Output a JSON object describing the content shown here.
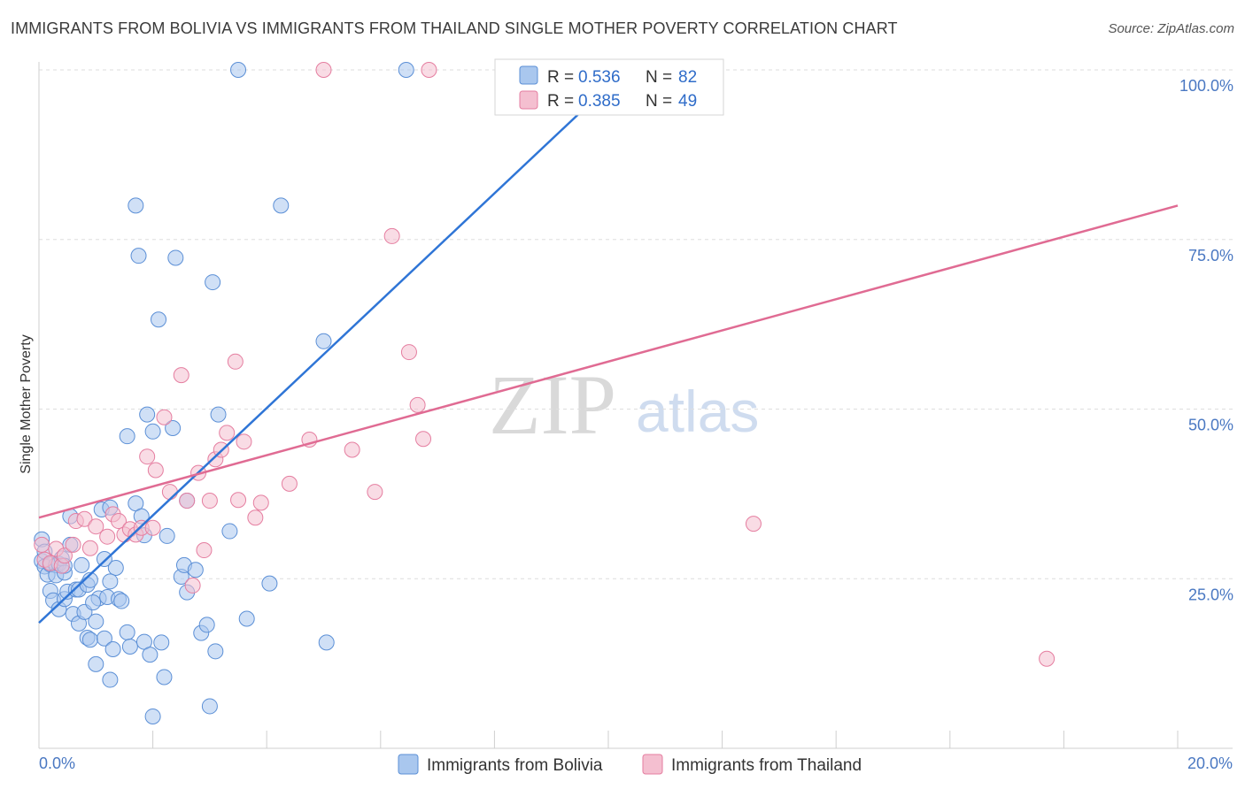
{
  "chart_data": {
    "type": "scatter",
    "title": "IMMIGRANTS FROM BOLIVIA VS IMMIGRANTS FROM THAILAND SINGLE MOTHER POVERTY CORRELATION CHART",
    "source": "Source: ZipAtlas.com",
    "xlabel": "",
    "ylabel": "Single Mother Poverty",
    "xlim": [
      0,
      20
    ],
    "ylim": [
      0,
      105
    ],
    "x_tick_labels": [
      "0.0%",
      "20.0%"
    ],
    "y_ticks": [
      25,
      50,
      75,
      100
    ],
    "y_tick_labels": [
      "25.0%",
      "50.0%",
      "75.0%",
      "100.0%"
    ],
    "watermark": {
      "zip": "ZIP",
      "atlas": "atlas"
    },
    "legend": {
      "r_label": "R =",
      "n_label": "N =",
      "entries": [
        {
          "name": "Immigrants from Bolivia",
          "r": "0.536",
          "n": "82"
        },
        {
          "name": "Immigrants from Thailand",
          "r": "0.385",
          "n": "49"
        }
      ]
    },
    "series": [
      {
        "name": "Immigrants from Bolivia",
        "color": "#5b8fd6",
        "fill": "#a9c7ee",
        "trend": {
          "x0": 0,
          "y0": 18.5,
          "x1": 10.3,
          "y1": 100
        },
        "points": [
          [
            0.05,
            30.8
          ],
          [
            0.05,
            27.6
          ],
          [
            0.1,
            29
          ],
          [
            0.1,
            26.8
          ],
          [
            0.15,
            25.6
          ],
          [
            0.2,
            27.1
          ],
          [
            0.2,
            23.2
          ],
          [
            0.25,
            21.8
          ],
          [
            0.3,
            27
          ],
          [
            0.3,
            25.5
          ],
          [
            0.35,
            27.2
          ],
          [
            0.35,
            20.5
          ],
          [
            0.4,
            28
          ],
          [
            0.45,
            25.9
          ],
          [
            0.45,
            22
          ],
          [
            0.5,
            23.1
          ],
          [
            0.55,
            30
          ],
          [
            0.55,
            34.2
          ],
          [
            0.6,
            19.8
          ],
          [
            0.65,
            23.4
          ],
          [
            0.7,
            18.4
          ],
          [
            0.7,
            23.4
          ],
          [
            0.8,
            20.1
          ],
          [
            0.85,
            24.1
          ],
          [
            0.85,
            16.3
          ],
          [
            0.9,
            24.8
          ],
          [
            0.9,
            16
          ],
          [
            1.0,
            18.7
          ],
          [
            1.0,
            12.4
          ],
          [
            1.05,
            22.1
          ],
          [
            1.1,
            35.2
          ],
          [
            1.15,
            16.2
          ],
          [
            1.15,
            27.9
          ],
          [
            1.2,
            22.3
          ],
          [
            1.25,
            35.5
          ],
          [
            1.25,
            10.1
          ],
          [
            1.3,
            14.6
          ],
          [
            1.35,
            26.6
          ],
          [
            1.4,
            22
          ],
          [
            1.45,
            21.7
          ],
          [
            1.55,
            17.1
          ],
          [
            1.55,
            46
          ],
          [
            1.6,
            15
          ],
          [
            1.7,
            80
          ],
          [
            1.7,
            36.1
          ],
          [
            1.75,
            72.6
          ],
          [
            1.8,
            34.2
          ],
          [
            1.85,
            15.7
          ],
          [
            1.85,
            31.4
          ],
          [
            1.9,
            49.2
          ],
          [
            1.95,
            13.8
          ],
          [
            2.0,
            46.7
          ],
          [
            2.1,
            63.2
          ],
          [
            2.15,
            15.6
          ],
          [
            2.2,
            10.5
          ],
          [
            2.25,
            31.3
          ],
          [
            2.35,
            47.2
          ],
          [
            2.4,
            72.3
          ],
          [
            2.5,
            25.3
          ],
          [
            2.55,
            27
          ],
          [
            2.6,
            23
          ],
          [
            2.75,
            26.3
          ],
          [
            2.85,
            17
          ],
          [
            2.95,
            18.2
          ],
          [
            3.0,
            6.2
          ],
          [
            3.05,
            68.7
          ],
          [
            3.1,
            14.3
          ],
          [
            3.15,
            49.2
          ],
          [
            3.35,
            32
          ],
          [
            3.5,
            100
          ],
          [
            3.65,
            19.1
          ],
          [
            4.05,
            24.3
          ],
          [
            4.25,
            80
          ],
          [
            5.0,
            60
          ],
          [
            5.05,
            15.6
          ],
          [
            6.45,
            100
          ],
          [
            2.0,
            4.7
          ],
          [
            0.75,
            27
          ],
          [
            1.25,
            24.6
          ],
          [
            2.6,
            36.5
          ],
          [
            0.45,
            26.9
          ],
          [
            0.95,
            21.5
          ]
        ]
      },
      {
        "name": "Immigrants from Thailand",
        "color": "#e57ea0",
        "fill": "#f4bfd0",
        "trend": {
          "x0": 0,
          "y0": 34,
          "x1": 20,
          "y1": 80
        },
        "points": [
          [
            0.05,
            30
          ],
          [
            0.1,
            27.8
          ],
          [
            0.2,
            27.3
          ],
          [
            0.3,
            29.4
          ],
          [
            0.4,
            26.9
          ],
          [
            0.45,
            28.4
          ],
          [
            0.6,
            30
          ],
          [
            0.65,
            33.5
          ],
          [
            0.8,
            33.8
          ],
          [
            0.9,
            29.5
          ],
          [
            1.0,
            32.7
          ],
          [
            1.2,
            31.2
          ],
          [
            1.3,
            34.5
          ],
          [
            1.4,
            33.5
          ],
          [
            1.5,
            31.5
          ],
          [
            1.6,
            32.3
          ],
          [
            1.7,
            31.5
          ],
          [
            1.8,
            32.5
          ],
          [
            1.9,
            43
          ],
          [
            2.0,
            32.5
          ],
          [
            2.05,
            41
          ],
          [
            2.2,
            48.8
          ],
          [
            2.3,
            37.8
          ],
          [
            2.5,
            55
          ],
          [
            2.6,
            36.5
          ],
          [
            2.7,
            24
          ],
          [
            2.8,
            40.6
          ],
          [
            2.9,
            29.2
          ],
          [
            3.0,
            36.5
          ],
          [
            3.1,
            42.6
          ],
          [
            3.2,
            44
          ],
          [
            3.3,
            46.5
          ],
          [
            3.45,
            57
          ],
          [
            3.5,
            36.6
          ],
          [
            3.6,
            45.2
          ],
          [
            3.8,
            34
          ],
          [
            3.9,
            36.2
          ],
          [
            4.4,
            39
          ],
          [
            4.75,
            45.5
          ],
          [
            5.0,
            100
          ],
          [
            5.5,
            44
          ],
          [
            5.9,
            37.8
          ],
          [
            6.2,
            75.5
          ],
          [
            6.5,
            58.4
          ],
          [
            6.65,
            50.6
          ],
          [
            6.75,
            45.6
          ],
          [
            6.85,
            100
          ],
          [
            12.55,
            33.1
          ],
          [
            17.7,
            13.2
          ]
        ]
      }
    ]
  }
}
